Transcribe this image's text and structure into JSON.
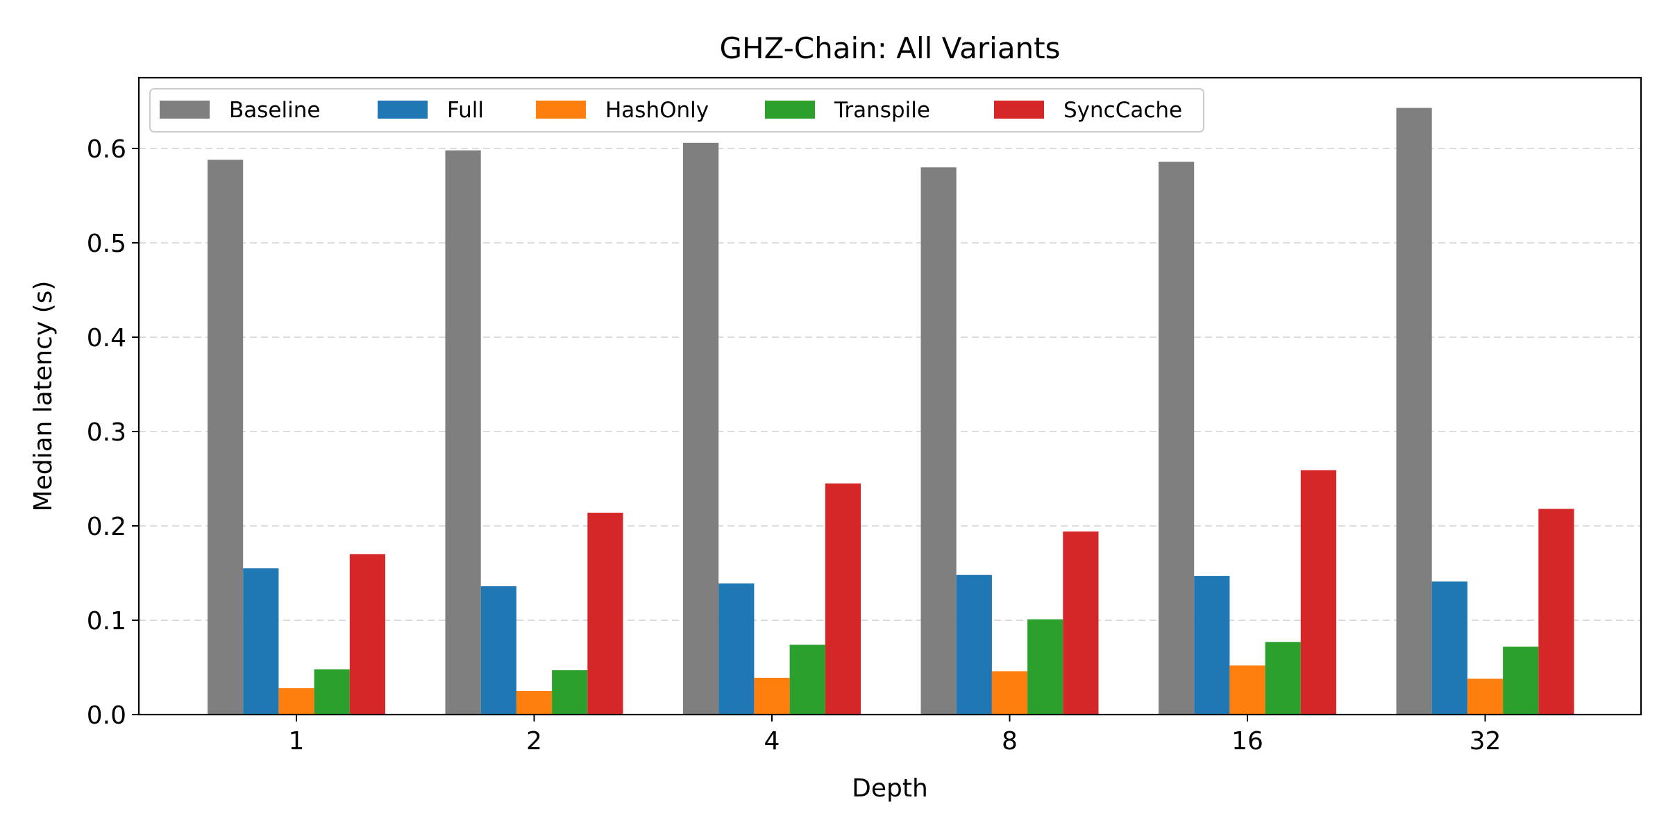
{
  "chart_data": {
    "type": "bar",
    "title": "GHZ-Chain: All Variants",
    "xlabel": "Depth",
    "ylabel": "Median latency (s)",
    "ylim": [
      0,
      0.675
    ],
    "yticks": [
      "0.0",
      "0.1",
      "0.2",
      "0.3",
      "0.4",
      "0.5",
      "0.6"
    ],
    "grid": "horizontal dashed",
    "legend_position": "top-left",
    "categories": [
      "1",
      "2",
      "4",
      "8",
      "16",
      "32"
    ],
    "series": [
      {
        "name": "Baseline",
        "color": "#7f7f7f",
        "values": [
          0.588,
          0.598,
          0.606,
          0.58,
          0.586,
          0.643
        ]
      },
      {
        "name": "Full",
        "color": "#1f77b4",
        "values": [
          0.155,
          0.136,
          0.139,
          0.148,
          0.147,
          0.141
        ]
      },
      {
        "name": "HashOnly",
        "color": "#ff7f0e",
        "values": [
          0.028,
          0.025,
          0.039,
          0.046,
          0.052,
          0.038
        ]
      },
      {
        "name": "Transpile",
        "color": "#2ca02c",
        "values": [
          0.048,
          0.047,
          0.074,
          0.101,
          0.077,
          0.072
        ]
      },
      {
        "name": "SyncCache",
        "color": "#d62728",
        "values": [
          0.17,
          0.214,
          0.245,
          0.194,
          0.259,
          0.218
        ]
      }
    ]
  }
}
